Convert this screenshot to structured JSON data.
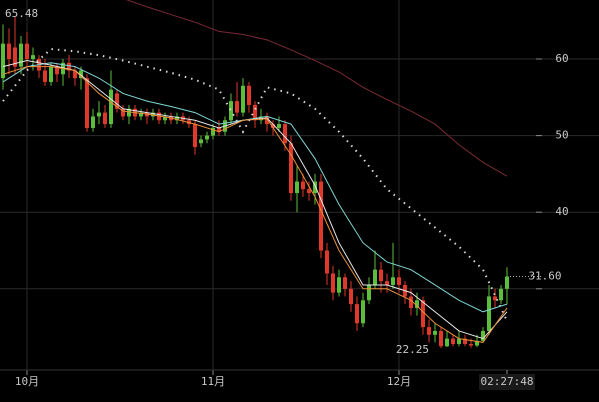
{
  "chart_data": {
    "type": "candlestick",
    "up_color": "#5cbf3a",
    "down_color": "#e0392b",
    "ylim": [
      19.4,
      67.7
    ],
    "yticks": [
      40,
      50,
      60
    ],
    "ygrid": [
      30,
      40,
      50,
      60
    ],
    "grid": true,
    "xlim": [
      -0.5,
      92.5
    ],
    "xlabels": [
      {
        "value": 4,
        "label": "10月"
      },
      {
        "value": 35,
        "label": "11月"
      },
      {
        "value": 66,
        "label": "12月"
      }
    ],
    "time_label": {
      "value": 84,
      "label": "02:27:48"
    },
    "last_price_label": "31.60",
    "candles": [
      {
        "o": 57.5,
        "h": 64.5,
        "l": 56,
        "c": 62
      },
      {
        "o": 62,
        "h": 64,
        "l": 58,
        "c": 60
      },
      {
        "o": 61.5,
        "h": 65.48,
        "l": 58,
        "c": 59
      },
      {
        "o": 59,
        "h": 63,
        "l": 58,
        "c": 62
      },
      {
        "o": 62,
        "h": 63.5,
        "l": 58.5,
        "c": 60
      },
      {
        "o": 60,
        "h": 61.5,
        "l": 58.5,
        "c": 60.5
      },
      {
        "o": 60,
        "h": 60.5,
        "l": 57.5,
        "c": 58.5
      },
      {
        "o": 58.5,
        "h": 60,
        "l": 56.5,
        "c": 57
      },
      {
        "o": 57,
        "h": 59.5,
        "l": 56.5,
        "c": 59
      },
      {
        "o": 59,
        "h": 59.5,
        "l": 57,
        "c": 58
      },
      {
        "o": 58,
        "h": 60,
        "l": 56.5,
        "c": 59.5
      },
      {
        "o": 59.5,
        "h": 60.5,
        "l": 57.5,
        "c": 58.5
      },
      {
        "o": 58.5,
        "h": 59,
        "l": 56.5,
        "c": 57.5
      },
      {
        "o": 57.5,
        "h": 59,
        "l": 56,
        "c": 58.5
      },
      {
        "o": 57.5,
        "h": 58,
        "l": 50.5,
        "c": 51
      },
      {
        "o": 51,
        "h": 53.5,
        "l": 50.5,
        "c": 52.5
      },
      {
        "o": 52.5,
        "h": 54.5,
        "l": 51.5,
        "c": 53
      },
      {
        "o": 53,
        "h": 54,
        "l": 51,
        "c": 51.5
      },
      {
        "o": 51.5,
        "h": 58.5,
        "l": 51,
        "c": 56
      },
      {
        "o": 55.5,
        "h": 56,
        "l": 53,
        "c": 53.5
      },
      {
        "o": 53.5,
        "h": 54,
        "l": 52,
        "c": 52.5
      },
      {
        "o": 52.5,
        "h": 54,
        "l": 51.5,
        "c": 53.5
      },
      {
        "o": 53.5,
        "h": 54,
        "l": 52,
        "c": 52.5
      },
      {
        "o": 52.5,
        "h": 53.5,
        "l": 52,
        "c": 53
      },
      {
        "o": 53,
        "h": 53.5,
        "l": 51.5,
        "c": 52.5
      },
      {
        "o": 52.5,
        "h": 53.5,
        "l": 52,
        "c": 53
      },
      {
        "o": 53,
        "h": 53.5,
        "l": 51.5,
        "c": 52
      },
      {
        "o": 52,
        "h": 53,
        "l": 51.5,
        "c": 52.5
      },
      {
        "o": 52.5,
        "h": 53,
        "l": 51.5,
        "c": 52
      },
      {
        "o": 52,
        "h": 53,
        "l": 51.5,
        "c": 52.5
      },
      {
        "o": 52.5,
        "h": 53,
        "l": 51.5,
        "c": 52
      },
      {
        "o": 52,
        "h": 52.5,
        "l": 51,
        "c": 51.5
      },
      {
        "o": 51.5,
        "h": 52,
        "l": 47.5,
        "c": 48.5
      },
      {
        "o": 49,
        "h": 50,
        "l": 48.5,
        "c": 49.5
      },
      {
        "o": 49.5,
        "h": 50.5,
        "l": 49,
        "c": 50
      },
      {
        "o": 50,
        "h": 51.5,
        "l": 49.5,
        "c": 51
      },
      {
        "o": 51,
        "h": 52,
        "l": 50,
        "c": 50.5
      },
      {
        "o": 50.5,
        "h": 52.5,
        "l": 50,
        "c": 52
      },
      {
        "o": 52,
        "h": 55.5,
        "l": 51.5,
        "c": 54.5
      },
      {
        "o": 54.5,
        "h": 57,
        "l": 52.5,
        "c": 53
      },
      {
        "o": 53,
        "h": 57.5,
        "l": 52.5,
        "c": 56.5
      },
      {
        "o": 56.5,
        "h": 57,
        "l": 53,
        "c": 54
      },
      {
        "o": 54,
        "h": 54.5,
        "l": 51,
        "c": 52
      },
      {
        "o": 52,
        "h": 53.5,
        "l": 51.5,
        "c": 52.5
      },
      {
        "o": 52.5,
        "h": 53,
        "l": 50.5,
        "c": 51.5
      },
      {
        "o": 51.5,
        "h": 52,
        "l": 50,
        "c": 51
      },
      {
        "o": 51,
        "h": 52.5,
        "l": 50.5,
        "c": 51.5
      },
      {
        "o": 51.5,
        "h": 52,
        "l": 48,
        "c": 49
      },
      {
        "o": 49,
        "h": 50,
        "l": 41.5,
        "c": 42.5
      },
      {
        "o": 42.5,
        "h": 46,
        "l": 40,
        "c": 44
      },
      {
        "o": 44,
        "h": 45,
        "l": 42,
        "c": 43
      },
      {
        "o": 43,
        "h": 44,
        "l": 41.5,
        "c": 42.5
      },
      {
        "o": 42.5,
        "h": 45,
        "l": 41,
        "c": 44
      },
      {
        "o": 44,
        "h": 45,
        "l": 34,
        "c": 35
      },
      {
        "o": 35,
        "h": 36,
        "l": 30.5,
        "c": 32
      },
      {
        "o": 32,
        "h": 33,
        "l": 28.5,
        "c": 29.5
      },
      {
        "o": 29.5,
        "h": 32.5,
        "l": 29,
        "c": 31.5
      },
      {
        "o": 31.5,
        "h": 32,
        "l": 29,
        "c": 30
      },
      {
        "o": 30,
        "h": 31,
        "l": 27,
        "c": 28
      },
      {
        "o": 28,
        "h": 29,
        "l": 24.5,
        "c": 25.5
      },
      {
        "o": 25.5,
        "h": 29.5,
        "l": 25,
        "c": 28.5
      },
      {
        "o": 28.5,
        "h": 31.5,
        "l": 28,
        "c": 30.5
      },
      {
        "o": 30.5,
        "h": 35,
        "l": 30,
        "c": 32.5
      },
      {
        "o": 32.5,
        "h": 33.5,
        "l": 29.5,
        "c": 31
      },
      {
        "o": 31,
        "h": 32,
        "l": 29.5,
        "c": 30.5
      },
      {
        "o": 30.5,
        "h": 36,
        "l": 30,
        "c": 31.5
      },
      {
        "o": 31.5,
        "h": 32.5,
        "l": 29.5,
        "c": 30.5
      },
      {
        "o": 30.5,
        "h": 31,
        "l": 28,
        "c": 29
      },
      {
        "o": 29,
        "h": 30,
        "l": 26.5,
        "c": 27.5
      },
      {
        "o": 27.5,
        "h": 29.5,
        "l": 26.5,
        "c": 28.5
      },
      {
        "o": 28.5,
        "h": 29,
        "l": 24,
        "c": 25
      },
      {
        "o": 25,
        "h": 26,
        "l": 23,
        "c": 24
      },
      {
        "o": 24,
        "h": 25.5,
        "l": 23,
        "c": 24.5
      },
      {
        "o": 24.5,
        "h": 25,
        "l": 22.25,
        "c": 22.5
      },
      {
        "o": 22.5,
        "h": 24.5,
        "l": 22.4,
        "c": 23.5
      },
      {
        "o": 23.5,
        "h": 24,
        "l": 22.5,
        "c": 22.8
      },
      {
        "o": 22.8,
        "h": 24.5,
        "l": 22.5,
        "c": 23.5
      },
      {
        "o": 23.5,
        "h": 24,
        "l": 22.5,
        "c": 22.8
      },
      {
        "o": 22.8,
        "h": 23.5,
        "l": 22.3,
        "c": 22.6
      },
      {
        "o": 22.6,
        "h": 24,
        "l": 22.4,
        "c": 23.2
      },
      {
        "o": 23.2,
        "h": 25,
        "l": 23,
        "c": 24.5
      },
      {
        "o": 24.5,
        "h": 30.5,
        "l": 24,
        "c": 29
      },
      {
        "o": 29,
        "h": 30,
        "l": 27.5,
        "c": 28.5
      },
      {
        "o": 28.5,
        "h": 30.5,
        "l": 28,
        "c": 30
      },
      {
        "o": 30,
        "h": 32.8,
        "l": 28,
        "c": 31.6
      }
    ],
    "line_x": [
      0,
      4,
      8,
      12,
      16,
      20,
      24,
      28,
      32,
      36,
      40,
      44,
      48,
      52,
      56,
      60,
      64,
      68,
      72,
      76,
      80,
      84
    ],
    "lines": [
      {
        "color": "#7a2a33",
        "style": "solid",
        "values": [
          null,
          null,
          null,
          null,
          null,
          67.9,
          66.8,
          65.8,
          64.8,
          63.6,
          63.2,
          62.5,
          61.2,
          59.8,
          58.3,
          56.3,
          54.7,
          53.2,
          51.5,
          48.8,
          46.5,
          44.7
        ]
      },
      {
        "color": "#dddddd",
        "style": "dotted",
        "values": [
          54.5,
          58.5,
          61.3,
          61,
          60.5,
          59.8,
          59,
          58.2,
          57.3,
          56,
          50.5,
          56.3,
          55.5,
          53.5,
          50.5,
          47,
          43,
          40.5,
          38,
          35.5,
          32.5,
          25.8
        ]
      },
      {
        "color": "#7fd6d6",
        "style": "solid",
        "values": [
          57,
          59,
          59.5,
          59,
          57.5,
          55.5,
          54.5,
          53.8,
          53,
          51.5,
          52,
          52.5,
          51.5,
          47,
          41,
          36,
          33.5,
          32.5,
          30.5,
          28.5,
          27,
          28
        ]
      },
      {
        "color": "#e8e8e8",
        "style": "solid",
        "values": [
          59,
          59.8,
          59.2,
          58.5,
          56,
          53.5,
          53,
          52.5,
          52,
          51,
          52,
          52.3,
          49,
          43.5,
          36,
          30.5,
          30.5,
          29.5,
          27,
          24.5,
          23.5,
          27
        ]
      },
      {
        "color": "#e8903a",
        "style": "solid",
        "values": [
          58,
          59,
          59,
          58.5,
          55.5,
          53.2,
          52.8,
          52.3,
          51.5,
          50.5,
          52,
          52.2,
          47.5,
          42,
          35,
          30,
          30,
          28.5,
          25.5,
          23.5,
          23,
          27.5
        ]
      }
    ]
  }
}
